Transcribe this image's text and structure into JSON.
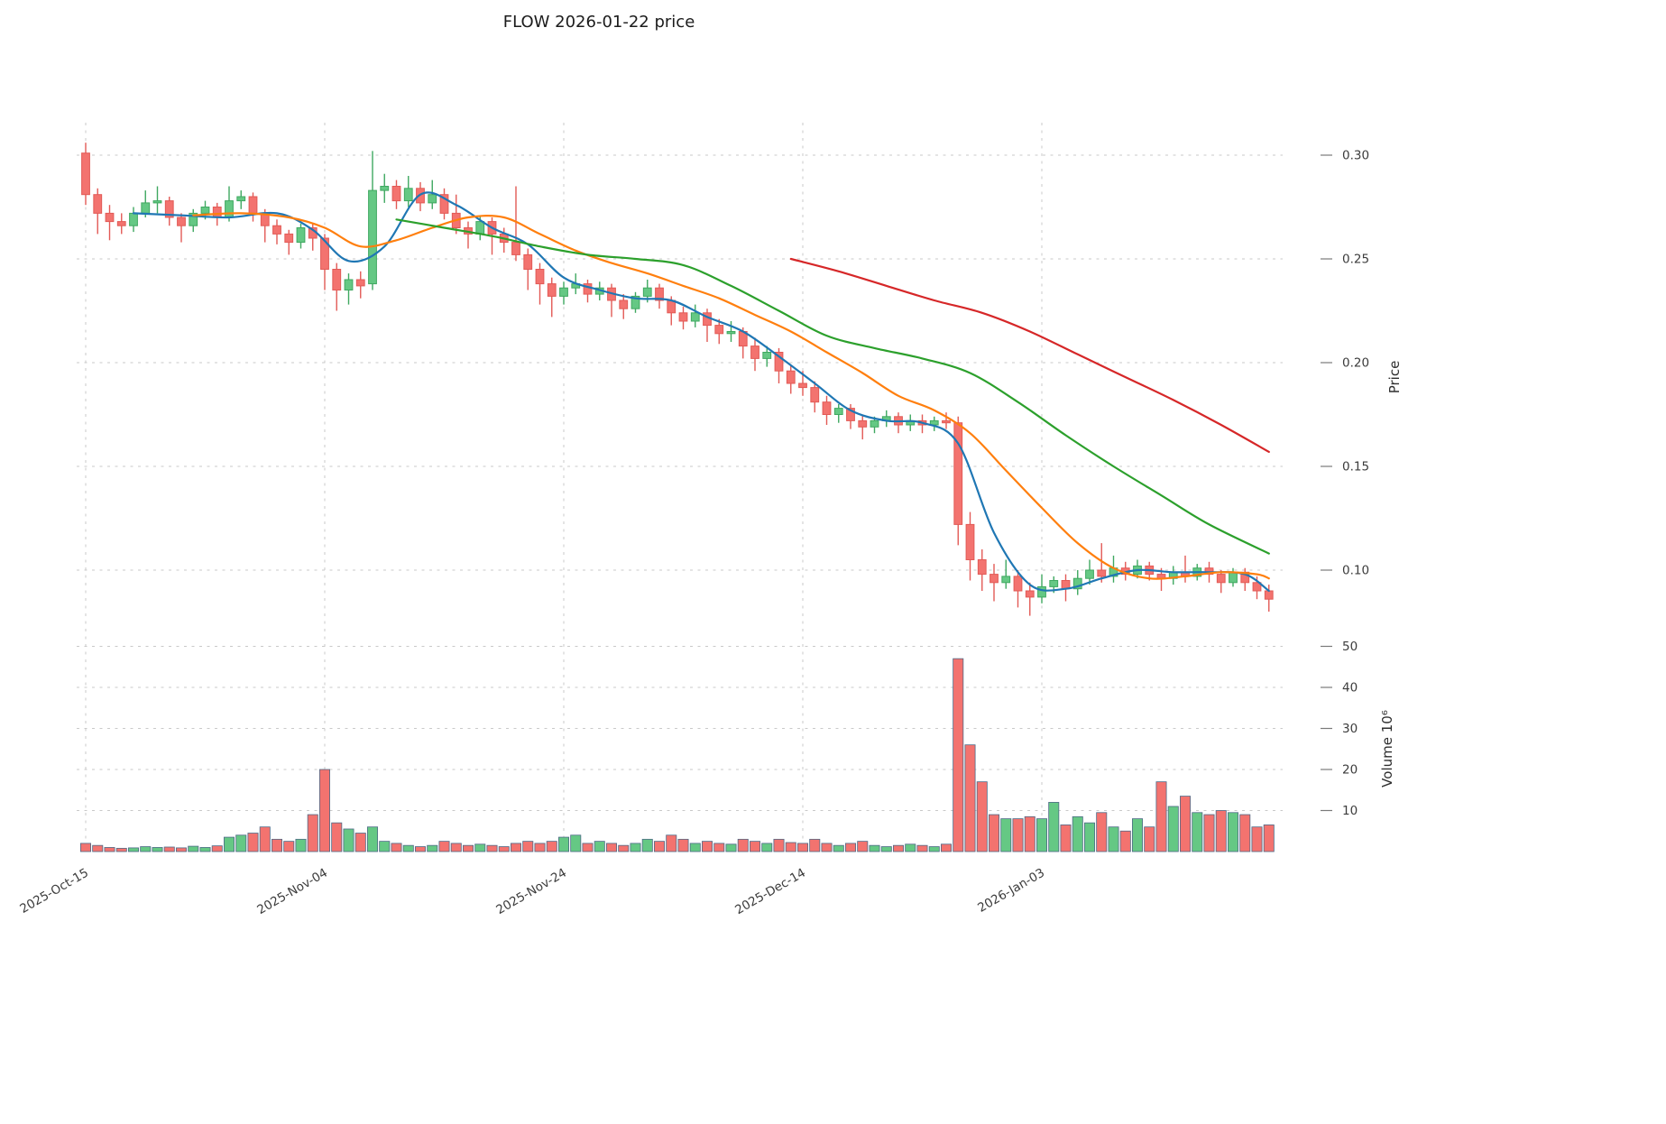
{
  "title": "FLOW  2026-01-22  price",
  "colors": {
    "background": "#ffffff",
    "grid": "#c9c9c9",
    "tick_text": "#3c3c3c",
    "candle_up_fill": "#65c884",
    "candle_up_edge": "#3fa860",
    "candle_down_fill": "#f3736f",
    "candle_down_edge": "#e25a56",
    "volume_edge": "#4e6a87",
    "ma_short": "#1f77b4",
    "ma_mid": "#ff7f0e",
    "ma_long": "#2ca02c",
    "ma_xlong": "#d62728"
  },
  "chart_data": {
    "type": "candlestick",
    "symbol": "FLOW",
    "as_of_date": "2026-01-22",
    "title": "FLOW  2026-01-22  price",
    "columns": [
      "date",
      "open",
      "high",
      "low",
      "close",
      "volume_millions"
    ],
    "candles": [
      [
        "2025-10-15",
        0.301,
        0.306,
        0.276,
        0.281,
        2.0
      ],
      [
        "2025-10-16",
        0.281,
        0.284,
        0.262,
        0.272,
        1.5
      ],
      [
        "2025-10-17",
        0.272,
        0.276,
        0.259,
        0.268,
        1.0
      ],
      [
        "2025-10-18",
        0.268,
        0.272,
        0.262,
        0.266,
        0.8
      ],
      [
        "2025-10-19",
        0.266,
        0.275,
        0.263,
        0.272,
        0.9
      ],
      [
        "2025-10-20",
        0.272,
        0.283,
        0.27,
        0.277,
        1.2
      ],
      [
        "2025-10-21",
        0.277,
        0.285,
        0.272,
        0.278,
        1.0
      ],
      [
        "2025-10-22",
        0.278,
        0.28,
        0.266,
        0.27,
        1.1
      ],
      [
        "2025-10-23",
        0.27,
        0.272,
        0.258,
        0.266,
        0.9
      ],
      [
        "2025-10-24",
        0.266,
        0.274,
        0.263,
        0.272,
        1.3
      ],
      [
        "2025-10-25",
        0.272,
        0.278,
        0.269,
        0.275,
        1.0
      ],
      [
        "2025-10-26",
        0.275,
        0.277,
        0.266,
        0.27,
        1.4
      ],
      [
        "2025-10-27",
        0.27,
        0.285,
        0.268,
        0.278,
        3.5
      ],
      [
        "2025-10-28",
        0.278,
        0.283,
        0.274,
        0.28,
        4.0
      ],
      [
        "2025-10-29",
        0.28,
        0.282,
        0.268,
        0.272,
        4.5
      ],
      [
        "2025-10-30",
        0.272,
        0.274,
        0.258,
        0.266,
        6.0
      ],
      [
        "2025-10-31",
        0.266,
        0.269,
        0.257,
        0.262,
        3.0
      ],
      [
        "2025-11-01",
        0.262,
        0.264,
        0.252,
        0.258,
        2.5
      ],
      [
        "2025-11-02",
        0.258,
        0.267,
        0.255,
        0.265,
        3.0
      ],
      [
        "2025-11-03",
        0.265,
        0.267,
        0.254,
        0.26,
        9.0
      ],
      [
        "2025-11-04",
        0.26,
        0.262,
        0.235,
        0.245,
        20.0
      ],
      [
        "2025-11-05",
        0.245,
        0.248,
        0.225,
        0.235,
        7.0
      ],
      [
        "2025-11-06",
        0.235,
        0.243,
        0.228,
        0.24,
        5.5
      ],
      [
        "2025-11-07",
        0.24,
        0.244,
        0.231,
        0.237,
        4.5
      ],
      [
        "2025-11-08",
        0.238,
        0.302,
        0.235,
        0.283,
        6.0
      ],
      [
        "2025-11-09",
        0.283,
        0.291,
        0.277,
        0.285,
        2.5
      ],
      [
        "2025-11-10",
        0.285,
        0.288,
        0.274,
        0.278,
        2.0
      ],
      [
        "2025-11-11",
        0.278,
        0.29,
        0.275,
        0.284,
        1.5
      ],
      [
        "2025-11-12",
        0.284,
        0.287,
        0.273,
        0.277,
        1.2
      ],
      [
        "2025-11-13",
        0.277,
        0.288,
        0.274,
        0.281,
        1.5
      ],
      [
        "2025-11-14",
        0.281,
        0.284,
        0.269,
        0.272,
        2.5
      ],
      [
        "2025-11-15",
        0.272,
        0.281,
        0.262,
        0.265,
        2.0
      ],
      [
        "2025-11-16",
        0.265,
        0.268,
        0.255,
        0.262,
        1.5
      ],
      [
        "2025-11-17",
        0.262,
        0.271,
        0.259,
        0.268,
        1.8
      ],
      [
        "2025-11-18",
        0.268,
        0.27,
        0.252,
        0.262,
        1.5
      ],
      [
        "2025-11-19",
        0.262,
        0.265,
        0.253,
        0.258,
        1.2
      ],
      [
        "2025-11-20",
        0.258,
        0.285,
        0.249,
        0.252,
        2.0
      ],
      [
        "2025-11-21",
        0.252,
        0.255,
        0.235,
        0.245,
        2.5
      ],
      [
        "2025-11-22",
        0.245,
        0.248,
        0.228,
        0.238,
        2.0
      ],
      [
        "2025-11-23",
        0.238,
        0.241,
        0.222,
        0.232,
        2.5
      ],
      [
        "2025-11-24",
        0.232,
        0.239,
        0.228,
        0.236,
        3.5
      ],
      [
        "2025-11-25",
        0.236,
        0.243,
        0.233,
        0.238,
        4.0
      ],
      [
        "2025-11-26",
        0.238,
        0.24,
        0.229,
        0.233,
        2.0
      ],
      [
        "2025-11-27",
        0.233,
        0.239,
        0.23,
        0.236,
        2.5
      ],
      [
        "2025-11-28",
        0.236,
        0.238,
        0.222,
        0.23,
        2.0
      ],
      [
        "2025-11-29",
        0.23,
        0.233,
        0.221,
        0.226,
        1.5
      ],
      [
        "2025-11-30",
        0.226,
        0.234,
        0.224,
        0.232,
        2.0
      ],
      [
        "2025-12-01",
        0.232,
        0.24,
        0.229,
        0.236,
        3.0
      ],
      [
        "2025-12-02",
        0.236,
        0.238,
        0.226,
        0.23,
        2.5
      ],
      [
        "2025-12-03",
        0.23,
        0.232,
        0.218,
        0.224,
        4.0
      ],
      [
        "2025-12-04",
        0.224,
        0.227,
        0.216,
        0.22,
        3.0
      ],
      [
        "2025-12-05",
        0.22,
        0.228,
        0.217,
        0.224,
        2.0
      ],
      [
        "2025-12-06",
        0.224,
        0.226,
        0.21,
        0.218,
        2.5
      ],
      [
        "2025-12-07",
        0.218,
        0.221,
        0.209,
        0.214,
        2.0
      ],
      [
        "2025-12-08",
        0.214,
        0.22,
        0.21,
        0.215,
        1.8
      ],
      [
        "2025-12-09",
        0.215,
        0.217,
        0.202,
        0.208,
        3.0
      ],
      [
        "2025-12-10",
        0.208,
        0.212,
        0.196,
        0.202,
        2.5
      ],
      [
        "2025-12-11",
        0.202,
        0.208,
        0.198,
        0.205,
        2.0
      ],
      [
        "2025-12-12",
        0.205,
        0.207,
        0.19,
        0.196,
        3.0
      ],
      [
        "2025-12-13",
        0.196,
        0.199,
        0.185,
        0.19,
        2.2
      ],
      [
        "2025-12-14",
        0.19,
        0.196,
        0.184,
        0.188,
        2.0
      ],
      [
        "2025-12-15",
        0.188,
        0.191,
        0.176,
        0.181,
        3.0
      ],
      [
        "2025-12-16",
        0.181,
        0.184,
        0.17,
        0.175,
        2.0
      ],
      [
        "2025-12-17",
        0.175,
        0.18,
        0.171,
        0.178,
        1.5
      ],
      [
        "2025-12-18",
        0.178,
        0.18,
        0.168,
        0.172,
        2.0
      ],
      [
        "2025-12-19",
        0.172,
        0.175,
        0.163,
        0.169,
        2.5
      ],
      [
        "2025-12-20",
        0.169,
        0.174,
        0.166,
        0.172,
        1.5
      ],
      [
        "2025-12-21",
        0.172,
        0.177,
        0.169,
        0.174,
        1.2
      ],
      [
        "2025-12-22",
        0.174,
        0.176,
        0.166,
        0.17,
        1.5
      ],
      [
        "2025-12-23",
        0.17,
        0.175,
        0.167,
        0.172,
        1.8
      ],
      [
        "2025-12-24",
        0.172,
        0.175,
        0.166,
        0.17,
        1.5
      ],
      [
        "2025-12-25",
        0.17,
        0.174,
        0.167,
        0.172,
        1.2
      ],
      [
        "2025-12-26",
        0.172,
        0.176,
        0.168,
        0.171,
        1.8
      ],
      [
        "2025-12-27",
        0.171,
        0.174,
        0.112,
        0.122,
        47.0
      ],
      [
        "2025-12-28",
        0.122,
        0.128,
        0.095,
        0.105,
        26.0
      ],
      [
        "2025-12-29",
        0.105,
        0.11,
        0.09,
        0.098,
        17.0
      ],
      [
        "2025-12-30",
        0.098,
        0.103,
        0.085,
        0.094,
        9.0
      ],
      [
        "2025-12-31",
        0.094,
        0.105,
        0.091,
        0.097,
        8.0
      ],
      [
        "2026-01-01",
        0.097,
        0.1,
        0.082,
        0.09,
        8.0
      ],
      [
        "2026-01-02",
        0.09,
        0.094,
        0.078,
        0.087,
        8.5
      ],
      [
        "2026-01-03",
        0.087,
        0.098,
        0.084,
        0.092,
        8.0
      ],
      [
        "2026-01-04",
        0.092,
        0.097,
        0.089,
        0.095,
        12.0
      ],
      [
        "2026-01-05",
        0.095,
        0.098,
        0.085,
        0.091,
        6.5
      ],
      [
        "2026-01-06",
        0.091,
        0.1,
        0.088,
        0.096,
        8.5
      ],
      [
        "2026-01-07",
        0.096,
        0.105,
        0.093,
        0.1,
        7.0
      ],
      [
        "2026-01-08",
        0.1,
        0.113,
        0.094,
        0.097,
        9.5
      ],
      [
        "2026-01-09",
        0.097,
        0.107,
        0.094,
        0.101,
        6.0
      ],
      [
        "2026-01-10",
        0.101,
        0.104,
        0.095,
        0.098,
        5.0
      ],
      [
        "2026-01-11",
        0.098,
        0.105,
        0.096,
        0.102,
        8.0
      ],
      [
        "2026-01-12",
        0.102,
        0.104,
        0.095,
        0.098,
        6.0
      ],
      [
        "2026-01-13",
        0.098,
        0.101,
        0.09,
        0.096,
        17.0
      ],
      [
        "2026-01-14",
        0.096,
        0.102,
        0.093,
        0.099,
        11.0
      ],
      [
        "2026-01-15",
        0.099,
        0.107,
        0.094,
        0.097,
        13.5
      ],
      [
        "2026-01-16",
        0.097,
        0.103,
        0.095,
        0.101,
        9.5
      ],
      [
        "2026-01-17",
        0.101,
        0.104,
        0.094,
        0.098,
        9.0
      ],
      [
        "2026-01-18",
        0.098,
        0.1,
        0.089,
        0.094,
        10.0
      ],
      [
        "2026-01-19",
        0.094,
        0.101,
        0.092,
        0.099,
        9.5
      ],
      [
        "2026-01-20",
        0.099,
        0.101,
        0.09,
        0.094,
        9.0
      ],
      [
        "2026-01-21",
        0.094,
        0.097,
        0.086,
        0.09,
        6.0
      ],
      [
        "2026-01-22",
        0.09,
        0.093,
        0.08,
        0.086,
        6.5
      ]
    ],
    "overlays": [
      {
        "name": "ma-short",
        "color_key": "ma_short",
        "points": [
          [
            "2025-10-19",
            0.272
          ],
          [
            "2025-10-23",
            0.271
          ],
          [
            "2025-10-27",
            0.27
          ],
          [
            "2025-10-31",
            0.272
          ],
          [
            "2025-11-03",
            0.264
          ],
          [
            "2025-11-06",
            0.249
          ],
          [
            "2025-11-09",
            0.256
          ],
          [
            "2025-11-12",
            0.281
          ],
          [
            "2025-11-15",
            0.276
          ],
          [
            "2025-11-18",
            0.265
          ],
          [
            "2025-11-21",
            0.257
          ],
          [
            "2025-11-24",
            0.241
          ],
          [
            "2025-11-27",
            0.235
          ],
          [
            "2025-11-30",
            0.231
          ],
          [
            "2025-12-03",
            0.23
          ],
          [
            "2025-12-06",
            0.222
          ],
          [
            "2025-12-09",
            0.215
          ],
          [
            "2025-12-12",
            0.203
          ],
          [
            "2025-12-15",
            0.19
          ],
          [
            "2025-12-18",
            0.177
          ],
          [
            "2025-12-21",
            0.172
          ],
          [
            "2025-12-24",
            0.171
          ],
          [
            "2025-12-27",
            0.161
          ],
          [
            "2025-12-30",
            0.118
          ],
          [
            "2026-01-02",
            0.093
          ],
          [
            "2026-01-05",
            0.091
          ],
          [
            "2026-01-08",
            0.096
          ],
          [
            "2026-01-11",
            0.1
          ],
          [
            "2026-01-14",
            0.099
          ],
          [
            "2026-01-17",
            0.099
          ],
          [
            "2026-01-20",
            0.098
          ],
          [
            "2026-01-22",
            0.09
          ]
        ]
      },
      {
        "name": "ma-mid",
        "color_key": "ma_mid",
        "points": [
          [
            "2025-10-24",
            0.271
          ],
          [
            "2025-10-28",
            0.272
          ],
          [
            "2025-11-01",
            0.27
          ],
          [
            "2025-11-04",
            0.265
          ],
          [
            "2025-11-07",
            0.256
          ],
          [
            "2025-11-10",
            0.259
          ],
          [
            "2025-11-13",
            0.265
          ],
          [
            "2025-11-16",
            0.27
          ],
          [
            "2025-11-19",
            0.27
          ],
          [
            "2025-11-22",
            0.262
          ],
          [
            "2025-11-25",
            0.254
          ],
          [
            "2025-11-28",
            0.248
          ],
          [
            "2025-12-01",
            0.243
          ],
          [
            "2025-12-04",
            0.237
          ],
          [
            "2025-12-07",
            0.231
          ],
          [
            "2025-12-10",
            0.223
          ],
          [
            "2025-12-13",
            0.215
          ],
          [
            "2025-12-16",
            0.205
          ],
          [
            "2025-12-19",
            0.195
          ],
          [
            "2025-12-22",
            0.184
          ],
          [
            "2025-12-25",
            0.177
          ],
          [
            "2025-12-28",
            0.166
          ],
          [
            "2025-12-31",
            0.148
          ],
          [
            "2026-01-03",
            0.13
          ],
          [
            "2026-01-06",
            0.113
          ],
          [
            "2026-01-09",
            0.101
          ],
          [
            "2026-01-12",
            0.096
          ],
          [
            "2026-01-15",
            0.097
          ],
          [
            "2026-01-18",
            0.099
          ],
          [
            "2026-01-21",
            0.098
          ],
          [
            "2026-01-22",
            0.096
          ]
        ]
      },
      {
        "name": "ma-long",
        "color_key": "ma_long",
        "points": [
          [
            "2025-11-10",
            0.269
          ],
          [
            "2025-11-14",
            0.265
          ],
          [
            "2025-11-18",
            0.261
          ],
          [
            "2025-11-22",
            0.256
          ],
          [
            "2025-11-26",
            0.252
          ],
          [
            "2025-11-30",
            0.25
          ],
          [
            "2025-12-04",
            0.247
          ],
          [
            "2025-12-08",
            0.237
          ],
          [
            "2025-12-12",
            0.225
          ],
          [
            "2025-12-16",
            0.213
          ],
          [
            "2025-12-20",
            0.207
          ],
          [
            "2025-12-24",
            0.202
          ],
          [
            "2025-12-28",
            0.195
          ],
          [
            "2026-01-01",
            0.181
          ],
          [
            "2026-01-05",
            0.165
          ],
          [
            "2026-01-09",
            0.15
          ],
          [
            "2026-01-13",
            0.136
          ],
          [
            "2026-01-17",
            0.122
          ],
          [
            "2026-01-22",
            0.108
          ]
        ]
      },
      {
        "name": "ma-xlong",
        "color_key": "ma_xlong",
        "points": [
          [
            "2025-12-13",
            0.25
          ],
          [
            "2025-12-17",
            0.244
          ],
          [
            "2025-12-21",
            0.237
          ],
          [
            "2025-12-25",
            0.23
          ],
          [
            "2025-12-29",
            0.224
          ],
          [
            "2026-01-02",
            0.215
          ],
          [
            "2026-01-06",
            0.204
          ],
          [
            "2026-01-10",
            0.193
          ],
          [
            "2026-01-14",
            0.182
          ],
          [
            "2026-01-18",
            0.17
          ],
          [
            "2026-01-22",
            0.157
          ]
        ]
      }
    ],
    "axes": {
      "price": {
        "label": "Price",
        "ticks": [
          0.1,
          0.15,
          0.2,
          0.25,
          0.3
        ],
        "range": [
          0.072,
          0.317
        ]
      },
      "volume": {
        "label": "Volume  10⁶",
        "ticks": [
          10,
          20,
          30,
          40,
          50
        ],
        "range": [
          0,
          52
        ]
      },
      "x": {
        "range": [
          "2025-10-15",
          "2026-01-22"
        ],
        "ticks": [
          {
            "date": "2025-10-15",
            "label": "2025-Oct-15"
          },
          {
            "date": "2025-11-04",
            "label": "2025-Nov-04"
          },
          {
            "date": "2025-11-24",
            "label": "2025-Nov-24"
          },
          {
            "date": "2025-12-14",
            "label": "2025-Dec-14"
          },
          {
            "date": "2026-01-03",
            "label": "2026-Jan-03"
          }
        ]
      },
      "grid": true,
      "legend": false
    }
  }
}
